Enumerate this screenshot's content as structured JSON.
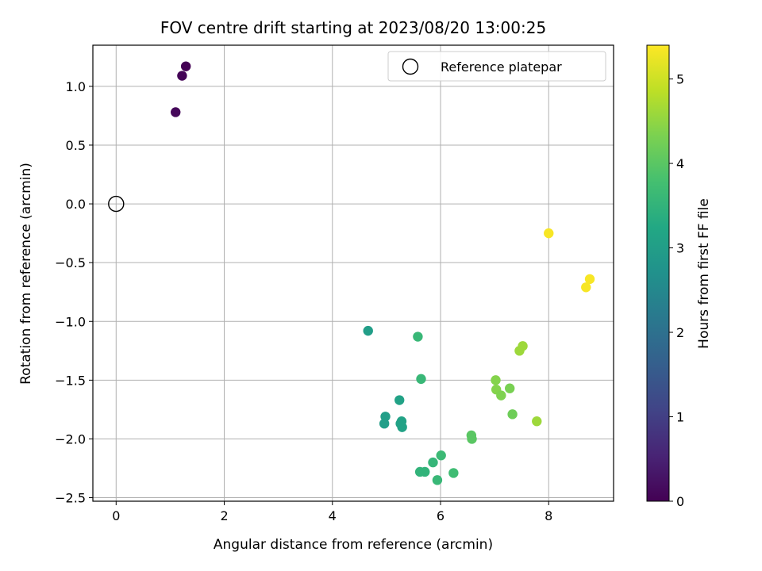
{
  "chart_data": {
    "type": "scatter",
    "title": "FOV centre drift starting at 2023/08/20 13:00:25",
    "xlabel": "Angular distance from reference (arcmin)",
    "ylabel": "Rotation from reference (arcmin)",
    "xlim": [
      -0.43,
      9.2
    ],
    "ylim": [
      -2.53,
      1.35
    ],
    "x_ticks": [
      0,
      2,
      4,
      6,
      8
    ],
    "x_tick_labels": [
      "0",
      "2",
      "4",
      "6",
      "8"
    ],
    "y_ticks": [
      1.0,
      0.5,
      0.0,
      -0.5,
      -1.0,
      -1.5,
      -2.0,
      -2.5
    ],
    "y_tick_labels": [
      "1.0",
      "0.5",
      "0.0",
      "−0.5",
      "−1.0",
      "−1.5",
      "−2.0",
      "−2.5"
    ],
    "grid": true,
    "legend": {
      "placement": "top-right",
      "entries": [
        "Reference platepar"
      ]
    },
    "reference": {
      "name": "Reference platepar",
      "x": 0,
      "y": 0
    },
    "colorbar": {
      "label": "Hours from first FF file",
      "colormap": "viridis",
      "range": [
        0,
        5.4
      ],
      "ticks": [
        0,
        1,
        2,
        3,
        4,
        5
      ],
      "tick_labels": [
        "0",
        "1",
        "2",
        "3",
        "4",
        "5"
      ]
    },
    "points": [
      {
        "x": 1.29,
        "y": 1.17,
        "h": 0.0
      },
      {
        "x": 1.22,
        "y": 1.09,
        "h": 0.05
      },
      {
        "x": 1.1,
        "y": 0.78,
        "h": 0.1
      },
      {
        "x": 4.66,
        "y": -1.08,
        "h": 3.0
      },
      {
        "x": 4.98,
        "y": -1.81,
        "h": 3.0
      },
      {
        "x": 4.96,
        "y": -1.87,
        "h": 3.0
      },
      {
        "x": 5.24,
        "y": -1.67,
        "h": 3.1
      },
      {
        "x": 5.26,
        "y": -1.87,
        "h": 3.1
      },
      {
        "x": 5.28,
        "y": -1.85,
        "h": 3.1
      },
      {
        "x": 5.29,
        "y": -1.9,
        "h": 3.1
      },
      {
        "x": 5.58,
        "y": -1.13,
        "h": 3.6
      },
      {
        "x": 5.64,
        "y": -1.49,
        "h": 3.6
      },
      {
        "x": 5.62,
        "y": -2.28,
        "h": 3.5
      },
      {
        "x": 5.71,
        "y": -2.28,
        "h": 3.5
      },
      {
        "x": 5.86,
        "y": -2.2,
        "h": 3.55
      },
      {
        "x": 5.94,
        "y": -2.35,
        "h": 3.6
      },
      {
        "x": 6.01,
        "y": -2.14,
        "h": 3.65
      },
      {
        "x": 6.24,
        "y": -2.29,
        "h": 3.7
      },
      {
        "x": 6.57,
        "y": -1.97,
        "h": 4.0
      },
      {
        "x": 6.58,
        "y": -2.0,
        "h": 4.0
      },
      {
        "x": 7.02,
        "y": -1.5,
        "h": 4.4
      },
      {
        "x": 7.03,
        "y": -1.58,
        "h": 4.4
      },
      {
        "x": 7.12,
        "y": -1.63,
        "h": 4.35
      },
      {
        "x": 7.28,
        "y": -1.57,
        "h": 4.3
      },
      {
        "x": 7.33,
        "y": -1.79,
        "h": 4.2
      },
      {
        "x": 7.46,
        "y": -1.25,
        "h": 4.6
      },
      {
        "x": 7.52,
        "y": -1.21,
        "h": 4.6
      },
      {
        "x": 7.78,
        "y": -1.85,
        "h": 4.6
      },
      {
        "x": 8.0,
        "y": -0.25,
        "h": 5.35
      },
      {
        "x": 8.69,
        "y": -0.71,
        "h": 5.35
      },
      {
        "x": 8.76,
        "y": -0.64,
        "h": 5.35
      }
    ]
  }
}
